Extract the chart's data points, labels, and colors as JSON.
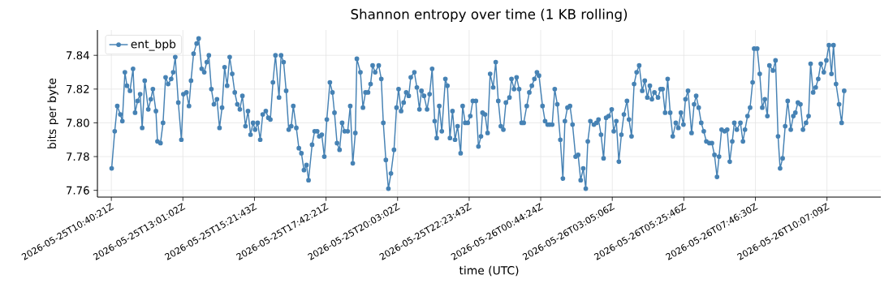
{
  "chart_data": {
    "type": "line",
    "title": "Shannon entropy over time (1 KB rolling)",
    "xlabel": "time (UTC)",
    "ylabel": "bits per byte",
    "xlim": [
      "2026-05-25T10:13",
      "2026-05-26T11:53"
    ],
    "ylim": [
      7.756,
      7.855
    ],
    "xticks": [
      {
        "value": "2026-05-25T10:40:21",
        "label": "2026-05-25T10:40:21Z"
      },
      {
        "value": "2026-05-25T13:01:02",
        "label": "2026-05-25T13:01:02Z"
      },
      {
        "value": "2026-05-25T15:21:43",
        "label": "2026-05-25T15:21:43Z"
      },
      {
        "value": "2026-05-25T17:42:21",
        "label": "2026-05-25T17:42:21Z"
      },
      {
        "value": "2026-05-25T20:03:02",
        "label": "2026-05-25T20:03:02Z"
      },
      {
        "value": "2026-05-25T22:23:43",
        "label": "2026-05-25T22:23:43Z"
      },
      {
        "value": "2026-05-26T00:44:24",
        "label": "2026-05-26T00:44:24Z"
      },
      {
        "value": "2026-05-26T03:05:06",
        "label": "2026-05-26T03:05:06Z"
      },
      {
        "value": "2026-05-26T05:25:46",
        "label": "2026-05-26T05:25:46Z"
      },
      {
        "value": "2026-05-26T07:46:30",
        "label": "2026-05-26T07:46:30Z"
      },
      {
        "value": "2026-05-26T10:07:09",
        "label": "2026-05-26T10:07:09Z"
      }
    ],
    "yticks": [
      7.76,
      7.78,
      {
        "value": 7.8,
        "label": "7.80"
      },
      7.82,
      7.84
    ],
    "grid": true,
    "legend": "top left",
    "marker": "circle",
    "line_style": "solid",
    "series": [
      {
        "name": "ent_bpb",
        "color": "#4682b4",
        "x": [
          "2026-05-25T10:41",
          "2026-05-25T10:47",
          "2026-05-25T10:52",
          "2026-05-25T10:58",
          "2026-05-25T11:02",
          "2026-05-25T11:07",
          "2026-05-25T11:11",
          "2026-05-25T11:17",
          "2026-05-25T11:23",
          "2026-05-25T11:27",
          "2026-05-25T11:32",
          "2026-05-25T11:37",
          "2026-05-25T11:41",
          "2026-05-25T11:46",
          "2026-05-25T11:53",
          "2026-05-25T11:58",
          "2026-05-25T12:02",
          "2026-05-25T12:08",
          "2026-05-25T12:11",
          "2026-05-25T12:17",
          "2026-05-25T12:22",
          "2026-05-25T12:27",
          "2026-05-25T12:32",
          "2026-05-25T12:38",
          "2026-05-25T12:42",
          "2026-05-25T12:46",
          "2026-05-25T12:52",
          "2026-05-25T12:58",
          "2026-05-25T13:02",
          "2026-05-25T13:08",
          "2026-05-25T13:13",
          "2026-05-25T13:17",
          "2026-05-25T13:22",
          "2026-05-25T13:28",
          "2026-05-25T13:32",
          "2026-05-25T13:38",
          "2026-05-25T13:43",
          "2026-05-25T13:48",
          "2026-05-25T13:52",
          "2026-05-25T13:57",
          "2026-05-25T14:02",
          "2026-05-25T14:08",
          "2026-05-25T14:13",
          "2026-05-25T14:18",
          "2026-05-25T14:23",
          "2026-05-25T14:28",
          "2026-05-25T14:33",
          "2026-05-25T14:38",
          "2026-05-25T14:43",
          "2026-05-25T14:48",
          "2026-05-25T14:53",
          "2026-05-25T14:58",
          "2026-05-25T15:04",
          "2026-05-25T15:09",
          "2026-05-25T15:14",
          "2026-05-25T15:19",
          "2026-05-25T15:23",
          "2026-05-25T15:28",
          "2026-05-25T15:33",
          "2026-05-25T15:38",
          "2026-05-25T15:44",
          "2026-05-25T15:49",
          "2026-05-25T15:53",
          "2026-05-25T15:58",
          "2026-05-25T16:03",
          "2026-05-25T16:10",
          "2026-05-25T16:14",
          "2026-05-25T16:19",
          "2026-05-25T16:24",
          "2026-05-25T16:29",
          "2026-05-25T16:34",
          "2026-05-25T16:38",
          "2026-05-25T16:44",
          "2026-05-25T16:49",
          "2026-05-25T16:54",
          "2026-05-25T16:59",
          "2026-05-25T17:04",
          "2026-05-25T17:08",
          "2026-05-25T17:15",
          "2026-05-25T17:20",
          "2026-05-25T17:25",
          "2026-05-25T17:29",
          "2026-05-25T17:34",
          "2026-05-25T17:39",
          "2026-05-25T17:44",
          "2026-05-25T17:50",
          "2026-05-25T17:55",
          "2026-05-25T17:59",
          "2026-05-25T18:04",
          "2026-05-25T18:09",
          "2026-05-25T18:14",
          "2026-05-25T18:19",
          "2026-05-25T18:25",
          "2026-05-25T18:30",
          "2026-05-25T18:35",
          "2026-05-25T18:40",
          "2026-05-25T18:43",
          "2026-05-25T18:50",
          "2026-05-25T18:55",
          "2026-05-25T19:00",
          "2026-05-25T19:05",
          "2026-05-25T19:10",
          "2026-05-25T19:14",
          "2026-05-25T19:19",
          "2026-05-25T19:26",
          "2026-05-25T19:31",
          "2026-05-25T19:35",
          "2026-05-25T19:40",
          "2026-05-25T19:45",
          "2026-05-25T19:50",
          "2026-05-25T19:56",
          "2026-05-25T20:01",
          "2026-05-25T20:05",
          "2026-05-25T20:10",
          "2026-05-25T20:15",
          "2026-05-25T20:20",
          "2026-05-25T20:25",
          "2026-05-25T20:29",
          "2026-05-25T20:36",
          "2026-05-25T20:41",
          "2026-05-25T20:46",
          "2026-05-25T20:50",
          "2026-05-25T20:55",
          "2026-05-25T21:01",
          "2026-05-25T21:06",
          "2026-05-25T21:11",
          "2026-05-25T21:16",
          "2026-05-25T21:20",
          "2026-05-25T21:25",
          "2026-05-25T21:30",
          "2026-05-25T21:37",
          "2026-05-25T21:41",
          "2026-05-25T21:46",
          "2026-05-25T21:51",
          "2026-05-25T21:56",
          "2026-05-25T22:01",
          "2026-05-25T22:07",
          "2026-05-25T22:11",
          "2026-05-25T22:16",
          "2026-05-25T22:21",
          "2026-05-25T22:26",
          "2026-05-25T22:31",
          "2026-05-25T22:37",
          "2026-05-25T22:42",
          "2026-05-25T22:47",
          "2026-05-25T22:50",
          "2026-05-25T22:55",
          "2026-05-25T23:00",
          "2026-05-25T23:05",
          "2026-05-25T23:11",
          "2026-05-25T23:16",
          "2026-05-25T23:21",
          "2026-05-25T23:26",
          "2026-05-25T23:31",
          "2026-05-25T23:36",
          "2026-05-25T23:43",
          "2026-05-25T23:47",
          "2026-05-25T23:52",
          "2026-05-25T23:57",
          "2026-05-26T00:02",
          "2026-05-26T00:07",
          "2026-05-26T00:11",
          "2026-05-26T00:17",
          "2026-05-26T00:22",
          "2026-05-26T00:27",
          "2026-05-26T00:32",
          "2026-05-26T00:37",
          "2026-05-26T00:41",
          "2026-05-26T00:48",
          "2026-05-26T00:53",
          "2026-05-26T00:58",
          "2026-05-26T01:02",
          "2026-05-26T01:07",
          "2026-05-26T01:12",
          "2026-05-26T01:17",
          "2026-05-26T01:23",
          "2026-05-26T01:28",
          "2026-05-26T01:32",
          "2026-05-26T01:37",
          "2026-05-26T01:42",
          "2026-05-26T01:47",
          "2026-05-26T01:53",
          "2026-05-26T01:58",
          "2026-05-26T02:03",
          "2026-05-26T02:08",
          "2026-05-26T02:13",
          "2026-05-26T02:17",
          "2026-05-26T02:22",
          "2026-05-26T02:29",
          "2026-05-26T02:34",
          "2026-05-26T02:38",
          "2026-05-26T02:43",
          "2026-05-26T02:48",
          "2026-05-26T02:53",
          "2026-05-26T02:58",
          "2026-05-26T03:04",
          "2026-05-26T03:08",
          "2026-05-26T03:13",
          "2026-05-26T03:18",
          "2026-05-26T03:23",
          "2026-05-26T03:28",
          "2026-05-26T03:34",
          "2026-05-26T03:38",
          "2026-05-26T03:43",
          "2026-05-26T03:48",
          "2026-05-26T03:53",
          "2026-05-26T03:58",
          "2026-05-26T04:04",
          "2026-05-26T04:09",
          "2026-05-26T04:14",
          "2026-05-26T04:19",
          "2026-05-26T04:23",
          "2026-05-26T04:28",
          "2026-05-26T04:35",
          "2026-05-26T04:40",
          "2026-05-26T04:44",
          "2026-05-26T04:49",
          "2026-05-26T04:54",
          "2026-05-26T04:59",
          "2026-05-26T05:04",
          "2026-05-26T05:10",
          "2026-05-26T05:15",
          "2026-05-26T05:20",
          "2026-05-26T05:25",
          "2026-05-26T05:29",
          "2026-05-26T05:34",
          "2026-05-26T05:41",
          "2026-05-26T05:46",
          "2026-05-26T05:50",
          "2026-05-26T05:55",
          "2026-05-26T06:00",
          "2026-05-26T06:05",
          "2026-05-26T06:10",
          "2026-05-26T06:16",
          "2026-05-26T06:21",
          "2026-05-26T06:26",
          "2026-05-26T06:31",
          "2026-05-26T06:35",
          "2026-05-26T06:40",
          "2026-05-26T06:46",
          "2026-05-26T06:51",
          "2026-05-26T06:56",
          "2026-05-26T07:01",
          "2026-05-26T07:05",
          "2026-05-26T07:10",
          "2026-05-26T07:17",
          "2026-05-26T07:22",
          "2026-05-26T07:26",
          "2026-05-26T07:31",
          "2026-05-26T07:36",
          "2026-05-26T07:41",
          "2026-05-26T07:44",
          "2026-05-26T07:50",
          "2026-05-26T07:55",
          "2026-05-26T08:00",
          "2026-05-26T08:05",
          "2026-05-26T08:10",
          "2026-05-26T08:14",
          "2026-05-26T08:21",
          "2026-05-26T08:26",
          "2026-05-26T08:31",
          "2026-05-26T08:35",
          "2026-05-26T08:40",
          "2026-05-26T08:45",
          "2026-05-26T08:50",
          "2026-05-26T08:56",
          "2026-05-26T09:01",
          "2026-05-26T09:05",
          "2026-05-26T09:10",
          "2026-05-26T09:15",
          "2026-05-26T09:20",
          "2026-05-26T09:26",
          "2026-05-26T09:31",
          "2026-05-26T09:35",
          "2026-05-26T09:40",
          "2026-05-26T09:45",
          "2026-05-26T09:50",
          "2026-05-26T09:55",
          "2026-05-26T10:01",
          "2026-05-26T10:06",
          "2026-05-26T10:11",
          "2026-05-26T10:16",
          "2026-05-26T10:20",
          "2026-05-26T10:25",
          "2026-05-26T10:31",
          "2026-05-26T10:36",
          "2026-05-26T10:41"
        ],
        "values": [
          7.773,
          7.795,
          7.81,
          7.805,
          7.801,
          7.83,
          7.822,
          7.819,
          7.832,
          7.806,
          7.813,
          7.817,
          7.797,
          7.825,
          7.808,
          7.814,
          7.82,
          7.807,
          7.789,
          7.788,
          7.8,
          7.827,
          7.823,
          7.826,
          7.83,
          7.839,
          7.812,
          7.79,
          7.817,
          7.818,
          7.81,
          7.825,
          7.841,
          7.847,
          7.85,
          7.832,
          7.83,
          7.836,
          7.84,
          7.82,
          7.811,
          7.814,
          7.797,
          7.809,
          7.833,
          7.822,
          7.839,
          7.829,
          7.818,
          7.811,
          7.808,
          7.816,
          7.798,
          7.807,
          7.793,
          7.8,
          7.796,
          7.8,
          7.79,
          7.805,
          7.807,
          7.803,
          7.802,
          7.824,
          7.84,
          7.815,
          7.84,
          7.836,
          7.819,
          7.796,
          7.798,
          7.81,
          7.797,
          7.785,
          7.782,
          7.772,
          7.775,
          7.766,
          7.787,
          7.795,
          7.795,
          7.792,
          7.793,
          7.78,
          7.802,
          7.824,
          7.818,
          7.806,
          7.788,
          7.784,
          7.8,
          7.795,
          7.795,
          7.81,
          7.776,
          7.794,
          7.838,
          7.83,
          7.809,
          7.818,
          7.818,
          7.823,
          7.834,
          7.83,
          7.834,
          7.826,
          7.8,
          7.778,
          7.761,
          7.77,
          7.784,
          7.809,
          7.82,
          7.807,
          7.812,
          7.818,
          7.816,
          7.827,
          7.83,
          7.821,
          7.808,
          7.819,
          7.816,
          7.808,
          7.817,
          7.832,
          7.801,
          7.791,
          7.81,
          7.795,
          7.826,
          7.822,
          7.791,
          7.807,
          7.79,
          7.798,
          7.782,
          7.81,
          7.8,
          7.8,
          7.804,
          7.813,
          7.813,
          7.786,
          7.792,
          7.806,
          7.805,
          7.794,
          7.829,
          7.821,
          7.836,
          7.813,
          7.798,
          7.796,
          7.812,
          7.815,
          7.826,
          7.82,
          7.827,
          7.82,
          7.8,
          7.8,
          7.81,
          7.818,
          7.822,
          7.826,
          7.83,
          7.828,
          7.81,
          7.801,
          7.799,
          7.799,
          7.799,
          7.82,
          7.811,
          7.79,
          7.767,
          7.801,
          7.809,
          7.81,
          7.799,
          7.78,
          7.781,
          7.766,
          7.773,
          7.761,
          7.789,
          7.801,
          7.799,
          7.8,
          7.802,
          7.793,
          7.779,
          7.803,
          7.804,
          7.808,
          7.795,
          7.801,
          7.777,
          7.793,
          7.805,
          7.813,
          7.802,
          7.792,
          7.823,
          7.83,
          7.834,
          7.819,
          7.825,
          7.815,
          7.822,
          7.814,
          7.818,
          7.815,
          7.82,
          7.82,
          7.806,
          7.826,
          7.806,
          7.792,
          7.8,
          7.797,
          7.806,
          7.799,
          7.814,
          7.819,
          7.794,
          7.811,
          7.816,
          7.809,
          7.8,
          7.795,
          7.789,
          7.788,
          7.788,
          7.781,
          7.768,
          7.78,
          7.796,
          7.795,
          7.796,
          7.777,
          7.789,
          7.8,
          7.796,
          7.8,
          7.789,
          7.796,
          7.804,
          7.809,
          7.824,
          7.844,
          7.844,
          7.829,
          7.809,
          7.814,
          7.804,
          7.834,
          7.831,
          7.837,
          7.792,
          7.773,
          7.779,
          7.798,
          7.813,
          7.796,
          7.804,
          7.806,
          7.812,
          7.811,
          7.796,
          7.8,
          7.804,
          7.835,
          7.818,
          7.821,
          7.826,
          7.835,
          7.83,
          7.837,
          7.846,
          7.829,
          7.846,
          7.823,
          7.811,
          7.8,
          7.819
        ]
      }
    ]
  }
}
